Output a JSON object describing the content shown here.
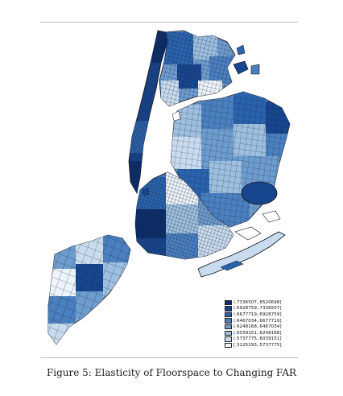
{
  "figure": {
    "caption": "Figure 5: Elasticity of Floorspace to Changing FAR"
  },
  "legend": {
    "items": [
      {
        "label": "(.7336507,.8520698]",
        "color": "#0b2f6b"
      },
      {
        "label": "(.6928759,.7336507]",
        "color": "#17468f"
      },
      {
        "label": "(.6677719,.6928759]",
        "color": "#2a63ad"
      },
      {
        "label": "(.6467034,.6677719]",
        "color": "#4a80c0"
      },
      {
        "label": "(.6248168,.6467034]",
        "color": "#6d9ccf"
      },
      {
        "label": "(.6039151,.6248168]",
        "color": "#9dbfe0"
      },
      {
        "label": "(.5737775,.6039151]",
        "color": "#c9dcef"
      },
      {
        "label": "[.3125293,.5737775]",
        "color": "#eef4fb"
      }
    ]
  }
}
